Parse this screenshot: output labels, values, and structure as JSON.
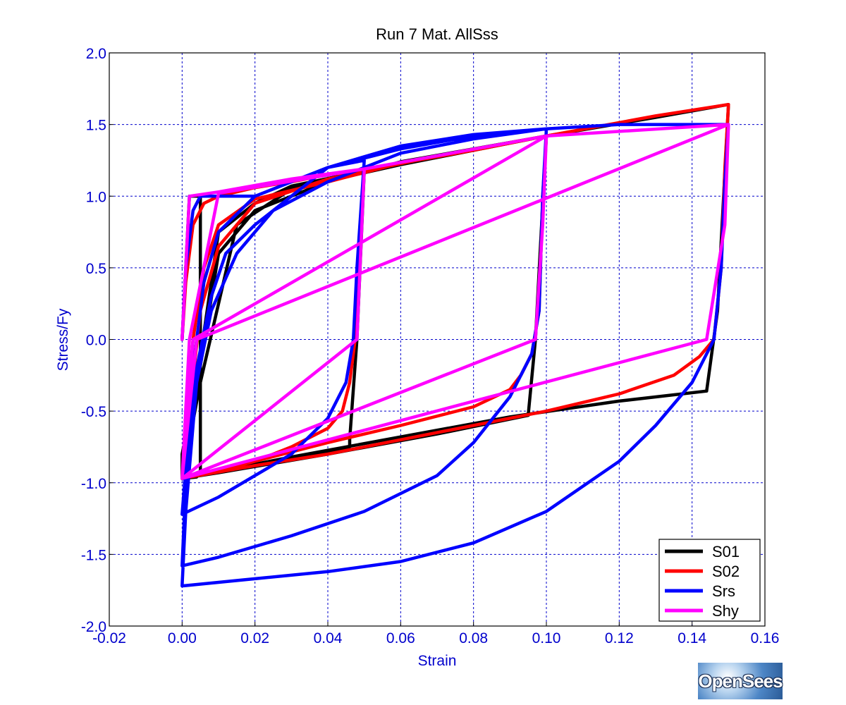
{
  "chart_data": {
    "type": "line",
    "title": "Run 7   Mat. AllSss",
    "xlabel": "Strain",
    "ylabel": "Stress/Fy",
    "xlim": [
      -0.02,
      0.16
    ],
    "ylim": [
      -2.0,
      2.0
    ],
    "xticks": [
      "-0.02",
      "0.00",
      "0.02",
      "0.04",
      "0.06",
      "0.08",
      "0.10",
      "0.12",
      "0.14",
      "0.16"
    ],
    "yticks": [
      "2.0",
      "1.5",
      "1.0",
      "0.5",
      "0.0",
      "-0.5",
      "-1.0",
      "-1.5",
      "-2.0"
    ],
    "grid": true,
    "legend_position": "bottom-right",
    "series": [
      {
        "name": "S01",
        "color": "#000000",
        "points": [
          [
            0,
            0
          ],
          [
            0.002,
            1.0
          ],
          [
            0.005,
            1.0
          ],
          [
            0.005,
            -0.93
          ],
          [
            0.004,
            -0.96
          ],
          [
            0.0,
            -0.97
          ],
          [
            0.0,
            -0.8
          ],
          [
            0.004,
            -0.3
          ],
          [
            0.01,
            0.75
          ],
          [
            0.02,
            0.95
          ],
          [
            0.03,
            1.07
          ],
          [
            0.045,
            1.15
          ],
          [
            0.05,
            1.18
          ],
          [
            0.048,
            0.0
          ],
          [
            0.046,
            -0.7
          ],
          [
            0.046,
            -0.75
          ],
          [
            0.03,
            -0.84
          ],
          [
            0.01,
            -0.93
          ],
          [
            0.0,
            -0.97
          ],
          [
            0.003,
            -0.5
          ],
          [
            0.01,
            0.6
          ],
          [
            0.02,
            0.9
          ],
          [
            0.04,
            1.1
          ],
          [
            0.06,
            1.24
          ],
          [
            0.08,
            1.33
          ],
          [
            0.1,
            1.42
          ],
          [
            0.097,
            0.0
          ],
          [
            0.095,
            -0.53
          ],
          [
            0.07,
            -0.66
          ],
          [
            0.04,
            -0.8
          ],
          [
            0.01,
            -0.93
          ],
          [
            0.0,
            -0.97
          ],
          [
            0.005,
            -0.3
          ],
          [
            0.015,
            0.8
          ],
          [
            0.03,
            1.05
          ],
          [
            0.06,
            1.22
          ],
          [
            0.1,
            1.42
          ],
          [
            0.13,
            1.55
          ],
          [
            0.15,
            1.64
          ],
          [
            0.147,
            0.2
          ],
          [
            0.144,
            -0.36
          ],
          [
            0.12,
            -0.43
          ],
          [
            0.09,
            -0.54
          ],
          [
            0.06,
            -0.68
          ],
          [
            0.03,
            -0.82
          ],
          [
            0.0,
            -0.97
          ]
        ]
      },
      {
        "name": "S02",
        "color": "#ff0000",
        "points": [
          [
            0,
            0
          ],
          [
            0.001,
            0.4
          ],
          [
            0.003,
            0.8
          ],
          [
            0.006,
            0.95
          ],
          [
            0.01,
            1.0
          ],
          [
            0.02,
            1.06
          ],
          [
            0.03,
            1.1
          ],
          [
            0.04,
            1.15
          ],
          [
            0.05,
            1.18
          ],
          [
            0.049,
            0.8
          ],
          [
            0.048,
            0.1
          ],
          [
            0.046,
            -0.3
          ],
          [
            0.044,
            -0.5
          ],
          [
            0.04,
            -0.62
          ],
          [
            0.03,
            -0.75
          ],
          [
            0.02,
            -0.85
          ],
          [
            0.01,
            -0.92
          ],
          [
            0.0,
            -0.97
          ],
          [
            0.001,
            -0.6
          ],
          [
            0.003,
            0.0
          ],
          [
            0.006,
            0.5
          ],
          [
            0.01,
            0.8
          ],
          [
            0.02,
            0.98
          ],
          [
            0.04,
            1.1
          ],
          [
            0.06,
            1.23
          ],
          [
            0.08,
            1.32
          ],
          [
            0.1,
            1.42
          ],
          [
            0.099,
            1.0
          ],
          [
            0.098,
            0.2
          ],
          [
            0.096,
            -0.1
          ],
          [
            0.093,
            -0.25
          ],
          [
            0.09,
            -0.35
          ],
          [
            0.08,
            -0.47
          ],
          [
            0.06,
            -0.6
          ],
          [
            0.04,
            -0.72
          ],
          [
            0.02,
            -0.85
          ],
          [
            0.0,
            -0.97
          ],
          [
            0.002,
            -0.5
          ],
          [
            0.005,
            0.2
          ],
          [
            0.01,
            0.65
          ],
          [
            0.02,
            0.95
          ],
          [
            0.04,
            1.12
          ],
          [
            0.07,
            1.28
          ],
          [
            0.1,
            1.42
          ],
          [
            0.13,
            1.56
          ],
          [
            0.15,
            1.64
          ],
          [
            0.149,
            1.2
          ],
          [
            0.148,
            0.5
          ],
          [
            0.146,
            0.0
          ],
          [
            0.142,
            -0.12
          ],
          [
            0.135,
            -0.25
          ],
          [
            0.12,
            -0.38
          ],
          [
            0.1,
            -0.5
          ],
          [
            0.07,
            -0.65
          ],
          [
            0.04,
            -0.8
          ],
          [
            0.02,
            -0.88
          ],
          [
            0.0,
            -0.97
          ]
        ]
      },
      {
        "name": "Srs",
        "color": "#0000ff",
        "points": [
          [
            0,
            0
          ],
          [
            0.001,
            0.5
          ],
          [
            0.003,
            0.9
          ],
          [
            0.005,
            1.0
          ],
          [
            0.015,
            1.0
          ],
          [
            0.02,
            1.0
          ],
          [
            0.03,
            1.1
          ],
          [
            0.04,
            1.2
          ],
          [
            0.05,
            1.25
          ],
          [
            0.048,
            0.5
          ],
          [
            0.047,
            0.0
          ],
          [
            0.045,
            -0.3
          ],
          [
            0.04,
            -0.55
          ],
          [
            0.03,
            -0.8
          ],
          [
            0.02,
            -0.95
          ],
          [
            0.01,
            -1.1
          ],
          [
            0.0,
            -1.22
          ],
          [
            0.001,
            -0.9
          ],
          [
            0.003,
            -0.2
          ],
          [
            0.006,
            0.4
          ],
          [
            0.01,
            0.75
          ],
          [
            0.02,
            1.0
          ],
          [
            0.04,
            1.2
          ],
          [
            0.06,
            1.33
          ],
          [
            0.08,
            1.42
          ],
          [
            0.1,
            1.47
          ],
          [
            0.099,
            1.0
          ],
          [
            0.098,
            0.2
          ],
          [
            0.096,
            -0.1
          ],
          [
            0.09,
            -0.4
          ],
          [
            0.08,
            -0.72
          ],
          [
            0.07,
            -0.95
          ],
          [
            0.05,
            -1.2
          ],
          [
            0.03,
            -1.37
          ],
          [
            0.01,
            -1.52
          ],
          [
            0.0,
            -1.58
          ],
          [
            0.001,
            -1.0
          ],
          [
            0.004,
            -0.2
          ],
          [
            0.008,
            0.3
          ],
          [
            0.012,
            0.6
          ],
          [
            0.02,
            0.8
          ],
          [
            0.03,
            1.0
          ],
          [
            0.04,
            1.2
          ],
          [
            0.06,
            1.35
          ],
          [
            0.08,
            1.43
          ],
          [
            0.1,
            1.47
          ],
          [
            0.12,
            1.5
          ],
          [
            0.15,
            1.5
          ],
          [
            0.149,
            1.1
          ],
          [
            0.148,
            0.5
          ],
          [
            0.146,
            0.0
          ],
          [
            0.14,
            -0.3
          ],
          [
            0.13,
            -0.6
          ],
          [
            0.12,
            -0.85
          ],
          [
            0.1,
            -1.2
          ],
          [
            0.08,
            -1.42
          ],
          [
            0.06,
            -1.55
          ],
          [
            0.04,
            -1.62
          ],
          [
            0.02,
            -1.67
          ],
          [
            0.0,
            -1.72
          ],
          [
            0.001,
            -1.2
          ],
          [
            0.004,
            -0.3
          ],
          [
            0.008,
            0.2
          ],
          [
            0.015,
            0.6
          ],
          [
            0.025,
            0.9
          ],
          [
            0.04,
            1.1
          ],
          [
            0.06,
            1.3
          ],
          [
            0.08,
            1.4
          ],
          [
            0.1,
            1.47
          ]
        ]
      },
      {
        "name": "Shy",
        "color": "#ff00ff",
        "points": [
          [
            0,
            0
          ],
          [
            0.002,
            1.0
          ],
          [
            0.01,
            1.03
          ],
          [
            0.03,
            1.12
          ],
          [
            0.05,
            1.19
          ],
          [
            0.049,
            0.6
          ],
          [
            0.048,
            0.0
          ],
          [
            0.0,
            -0.97
          ],
          [
            0.002,
            0.0
          ],
          [
            0.01,
            1.02
          ],
          [
            0.05,
            1.19
          ],
          [
            0.1,
            1.42
          ],
          [
            0.099,
            0.8
          ],
          [
            0.097,
            0.0
          ],
          [
            0.0,
            -0.97
          ],
          [
            0.003,
            0.0
          ],
          [
            0.1,
            1.42
          ],
          [
            0.15,
            1.5
          ],
          [
            0.149,
            0.8
          ],
          [
            0.144,
            0.0
          ],
          [
            0.0,
            -0.97
          ],
          [
            0.004,
            0.0
          ],
          [
            0.15,
            1.5
          ]
        ]
      }
    ]
  },
  "logo": {
    "text": "OpenSees"
  }
}
